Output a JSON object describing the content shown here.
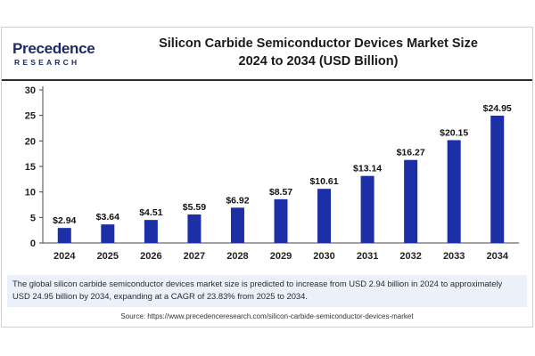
{
  "brand": {
    "logo_word": "Precedence",
    "logo_sub": "RESEARCH",
    "color": "#1f2a6b"
  },
  "header": {
    "title_line1": "Silicon Carbide Semiconductor Devices Market Size",
    "title_line2": "2024 to 2034 (USD Billion)"
  },
  "chart_data": {
    "type": "bar",
    "categories": [
      "2024",
      "2025",
      "2026",
      "2027",
      "2028",
      "2029",
      "2030",
      "2031",
      "2032",
      "2033",
      "2034"
    ],
    "values": [
      2.94,
      3.64,
      4.51,
      5.59,
      6.92,
      8.57,
      10.61,
      13.14,
      16.27,
      20.15,
      24.95
    ],
    "data_labels": [
      "$2.94",
      "$3.64",
      "$4.51",
      "$5.59",
      "$6.92",
      "$8.57",
      "$10.61",
      "$13.14",
      "$16.27",
      "$20.15",
      "$24.95"
    ],
    "title": "Silicon Carbide Semiconductor Devices Market Size 2024 to 2034 (USD Billion)",
    "xlabel": "",
    "ylabel": "",
    "ylim": [
      0,
      30
    ],
    "yticks": [
      0,
      5,
      10,
      15,
      20,
      25,
      30
    ],
    "grid": false,
    "bar_color": "#1d2fa6"
  },
  "footer": {
    "note": "The global silicon carbide semiconductor devices market size is predicted to increase from USD 2.94 billion in 2024 to approximately USD 24.95 billion by 2034, expanding at a CAGR of 23.83% from 2025 to 2034.",
    "source": "Source: https://www.precedenceresearch.com/silicon-carbide-semiconductor-devices-market"
  }
}
